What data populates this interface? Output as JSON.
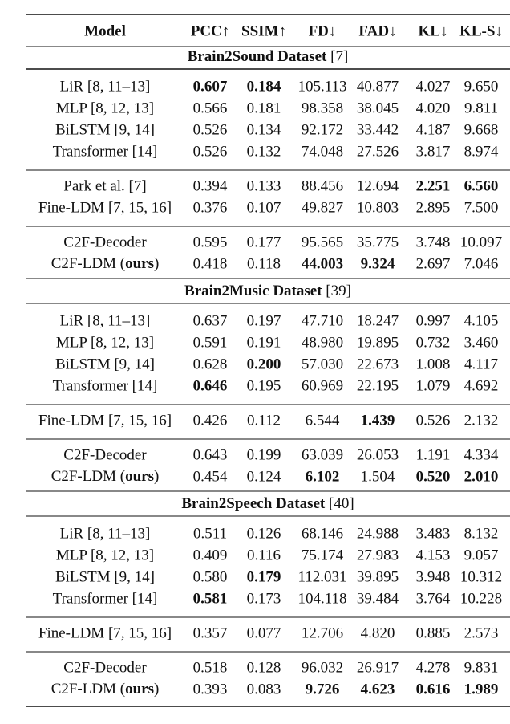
{
  "table": {
    "header": [
      "Model",
      "PCC↑",
      "SSIM↑",
      "FD↓",
      "FAD↓",
      "KL↓",
      "KL-S↓"
    ],
    "sections": [
      {
        "title": "Brain2Sound Dataset",
        "ref": "[7]",
        "groups": [
          {
            "rows": [
              {
                "model": "LiR [8, 11–13]",
                "values": [
                  "0.607",
                  "0.184",
                  "105.113",
                  "40.877",
                  "4.027",
                  "9.650"
                ],
                "bold": [
                  0,
                  1
                ]
              },
              {
                "model": "MLP [8, 12, 13]",
                "values": [
                  "0.566",
                  "0.181",
                  "98.358",
                  "38.045",
                  "4.020",
                  "9.811"
                ],
                "bold": []
              },
              {
                "model": "BiLSTM [9, 14]",
                "values": [
                  "0.526",
                  "0.134",
                  "92.172",
                  "33.442",
                  "4.187",
                  "9.668"
                ],
                "bold": []
              },
              {
                "model": "Transformer [14]",
                "values": [
                  "0.526",
                  "0.132",
                  "74.048",
                  "27.526",
                  "3.817",
                  "8.974"
                ],
                "bold": []
              }
            ]
          },
          {
            "rows": [
              {
                "model": "Park et al. [7]",
                "values": [
                  "0.394",
                  "0.133",
                  "88.456",
                  "12.694",
                  "2.251",
                  "6.560"
                ],
                "bold": [
                  4,
                  5
                ]
              },
              {
                "model": "Fine-LDM [7, 15, 16]",
                "values": [
                  "0.376",
                  "0.107",
                  "49.827",
                  "10.803",
                  "2.895",
                  "7.500"
                ],
                "bold": []
              }
            ]
          },
          {
            "rows": [
              {
                "model": "C2F-Decoder",
                "values": [
                  "0.595",
                  "0.177",
                  "95.565",
                  "35.775",
                  "3.748",
                  "10.097"
                ],
                "bold": []
              },
              {
                "model": [
                  "C2F-LDM (",
                  "ours",
                  ")"
                ],
                "model_bold": [
                  1
                ],
                "values": [
                  "0.418",
                  "0.118",
                  "44.003",
                  "9.324",
                  "2.697",
                  "7.046"
                ],
                "bold": [
                  2,
                  3
                ]
              }
            ]
          }
        ]
      },
      {
        "title": "Brain2Music Dataset",
        "ref": "[39]",
        "groups": [
          {
            "rows": [
              {
                "model": "LiR [8, 11–13]",
                "values": [
                  "0.637",
                  "0.197",
                  "47.710",
                  "18.247",
                  "0.997",
                  "4.105"
                ],
                "bold": []
              },
              {
                "model": "MLP [8, 12, 13]",
                "values": [
                  "0.591",
                  "0.191",
                  "48.980",
                  "19.895",
                  "0.732",
                  "3.460"
                ],
                "bold": []
              },
              {
                "model": "BiLSTM [9, 14]",
                "values": [
                  "0.628",
                  "0.200",
                  "57.030",
                  "22.673",
                  "1.008",
                  "4.117"
                ],
                "bold": [
                  1
                ]
              },
              {
                "model": "Transformer [14]",
                "values": [
                  "0.646",
                  "0.195",
                  "60.969",
                  "22.195",
                  "1.079",
                  "4.692"
                ],
                "bold": [
                  0
                ]
              }
            ]
          },
          {
            "rows": [
              {
                "model": "Fine-LDM [7, 15, 16]",
                "values": [
                  "0.426",
                  "0.112",
                  "6.544",
                  "1.439",
                  "0.526",
                  "2.132"
                ],
                "bold": [
                  3
                ]
              }
            ]
          },
          {
            "rows": [
              {
                "model": "C2F-Decoder",
                "values": [
                  "0.643",
                  "0.199",
                  "63.039",
                  "26.053",
                  "1.191",
                  "4.334"
                ],
                "bold": []
              },
              {
                "model": [
                  "C2F-LDM (",
                  "ours",
                  ")"
                ],
                "model_bold": [
                  1
                ],
                "values": [
                  "0.454",
                  "0.124",
                  "6.102",
                  "1.504",
                  "0.520",
                  "2.010"
                ],
                "bold": [
                  2,
                  4,
                  5
                ]
              }
            ]
          }
        ]
      },
      {
        "title": "Brain2Speech Dataset",
        "ref": "[40]",
        "groups": [
          {
            "rows": [
              {
                "model": "LiR [8, 11–13]",
                "values": [
                  "0.511",
                  "0.126",
                  "68.146",
                  "24.988",
                  "3.483",
                  "8.132"
                ],
                "bold": []
              },
              {
                "model": "MLP [8, 12, 13]",
                "values": [
                  "0.409",
                  "0.116",
                  "75.174",
                  "27.983",
                  "4.153",
                  "9.057"
                ],
                "bold": []
              },
              {
                "model": "BiLSTM [9, 14]",
                "values": [
                  "0.580",
                  "0.179",
                  "112.031",
                  "39.895",
                  "3.948",
                  "10.312"
                ],
                "bold": [
                  1
                ]
              },
              {
                "model": "Transformer [14]",
                "values": [
                  "0.581",
                  "0.173",
                  "104.118",
                  "39.484",
                  "3.764",
                  "10.228"
                ],
                "bold": [
                  0
                ]
              }
            ]
          },
          {
            "rows": [
              {
                "model": "Fine-LDM [7, 15, 16]",
                "values": [
                  "0.357",
                  "0.077",
                  "12.706",
                  "4.820",
                  "0.885",
                  "2.573"
                ],
                "bold": []
              }
            ]
          },
          {
            "rows": [
              {
                "model": "C2F-Decoder",
                "values": [
                  "0.518",
                  "0.128",
                  "96.032",
                  "26.917",
                  "4.278",
                  "9.831"
                ],
                "bold": []
              },
              {
                "model": [
                  "C2F-LDM (",
                  "ours",
                  ")"
                ],
                "model_bold": [
                  1
                ],
                "values": [
                  "0.393",
                  "0.083",
                  "9.726",
                  "4.623",
                  "0.616",
                  "1.989"
                ],
                "bold": [
                  2,
                  3,
                  4,
                  5
                ]
              }
            ]
          }
        ]
      }
    ]
  }
}
